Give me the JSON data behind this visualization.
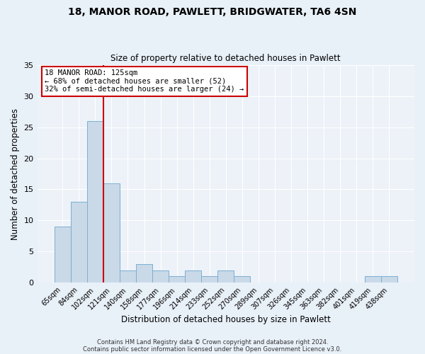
{
  "title1": "18, MANOR ROAD, PAWLETT, BRIDGWATER, TA6 4SN",
  "title2": "Size of property relative to detached houses in Pawlett",
  "xlabel": "Distribution of detached houses by size in Pawlett",
  "ylabel": "Number of detached properties",
  "bin_labels": [
    "65sqm",
    "84sqm",
    "102sqm",
    "121sqm",
    "140sqm",
    "158sqm",
    "177sqm",
    "196sqm",
    "214sqm",
    "233sqm",
    "252sqm",
    "270sqm",
    "289sqm",
    "307sqm",
    "326sqm",
    "345sqm",
    "363sqm",
    "382sqm",
    "401sqm",
    "419sqm",
    "438sqm"
  ],
  "bar_heights": [
    9,
    13,
    26,
    16,
    2,
    3,
    2,
    1,
    2,
    1,
    2,
    1,
    0,
    0,
    0,
    0,
    0,
    0,
    0,
    1,
    1
  ],
  "bar_color": "#c9d9e8",
  "bar_edge_color": "#7bafd4",
  "vline_x_index": 3,
  "vline_color": "#cc0000",
  "ylim": [
    0,
    35
  ],
  "yticks": [
    0,
    5,
    10,
    15,
    20,
    25,
    30,
    35
  ],
  "annotation_title": "18 MANOR ROAD: 125sqm",
  "annotation_line1": "← 68% of detached houses are smaller (52)",
  "annotation_line2": "32% of semi-detached houses are larger (24) →",
  "annotation_box_color": "#ffffff",
  "annotation_box_edge": "#cc0000",
  "bg_color": "#e8f0f8",
  "plot_bg_color": "#edf2f8",
  "footer1": "Contains HM Land Registry data © Crown copyright and database right 2024.",
  "footer2": "Contains public sector information licensed under the Open Government Licence v3.0."
}
